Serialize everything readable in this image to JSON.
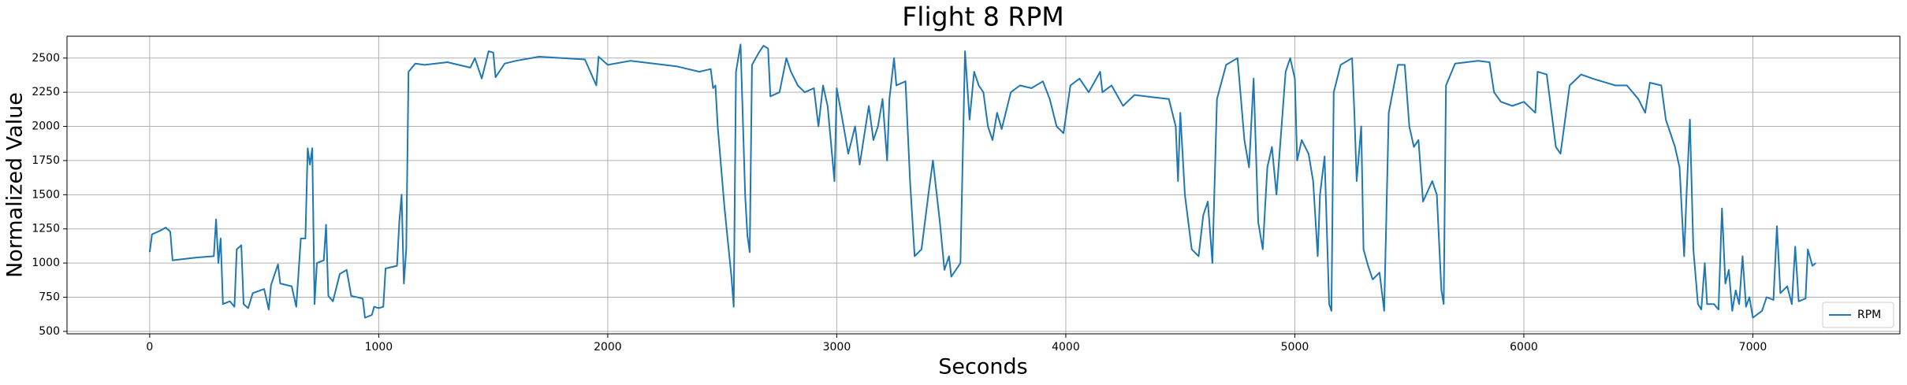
{
  "chart_data": {
    "type": "line",
    "title": "Flight 8 RPM",
    "x_label": "Seconds",
    "y_label": "Normalized Value",
    "xlim": [
      -361,
      7642
    ],
    "ylim": [
      482,
      2660
    ],
    "xticks": [
      0,
      1000,
      2000,
      3000,
      4000,
      5000,
      6000,
      7000
    ],
    "yticks": [
      500,
      750,
      1000,
      1250,
      1500,
      1750,
      2000,
      2250,
      2500
    ],
    "grid": true,
    "legend": "lower right",
    "series": [
      {
        "name": "RPM",
        "color": "#1f77b4",
        "x": [
          0,
          10,
          50,
          70,
          90,
          100,
          200,
          280,
          290,
          300,
          310,
          320,
          350,
          370,
          380,
          400,
          410,
          430,
          450,
          500,
          520,
          530,
          560,
          570,
          620,
          640,
          660,
          680,
          690,
          700,
          710,
          720,
          730,
          760,
          770,
          780,
          800,
          830,
          860,
          880,
          930,
          940,
          970,
          980,
          1000,
          1020,
          1030,
          1080,
          1090,
          1100,
          1110,
          1120,
          1130,
          1160,
          1200,
          1300,
          1400,
          1420,
          1450,
          1480,
          1500,
          1510,
          1550,
          1600,
          1700,
          1800,
          1900,
          1950,
          1960,
          2000,
          2100,
          2200,
          2300,
          2400,
          2450,
          2460,
          2470,
          2480,
          2510,
          2540,
          2550,
          2560,
          2580,
          2600,
          2610,
          2620,
          2630,
          2660,
          2680,
          2700,
          2710,
          2750,
          2780,
          2800,
          2830,
          2860,
          2900,
          2920,
          2940,
          2960,
          2990,
          3000,
          3030,
          3050,
          3080,
          3100,
          3140,
          3160,
          3180,
          3200,
          3220,
          3230,
          3250,
          3260,
          3300,
          3320,
          3340,
          3370,
          3400,
          3420,
          3450,
          3470,
          3490,
          3500,
          3520,
          3540,
          3560,
          3580,
          3600,
          3620,
          3640,
          3660,
          3680,
          3700,
          3720,
          3760,
          3800,
          3850,
          3900,
          3930,
          3960,
          3990,
          4020,
          4060,
          4100,
          4150,
          4160,
          4200,
          4250,
          4300,
          4400,
          4450,
          4480,
          4490,
          4500,
          4520,
          4550,
          4580,
          4600,
          4620,
          4640,
          4660,
          4700,
          4750,
          4780,
          4800,
          4820,
          4840,
          4860,
          4880,
          4900,
          4920,
          4960,
          4980,
          5000,
          5010,
          5030,
          5060,
          5080,
          5100,
          5110,
          5130,
          5150,
          5160,
          5170,
          5200,
          5250,
          5260,
          5270,
          5290,
          5300,
          5320,
          5340,
          5370,
          5390,
          5410,
          5450,
          5480,
          5500,
          5520,
          5540,
          5560,
          5600,
          5620,
          5640,
          5650,
          5660,
          5700,
          5800,
          5850,
          5870,
          5900,
          5950,
          6000,
          6050,
          6060,
          6100,
          6140,
          6160,
          6200,
          6250,
          6300,
          6400,
          6450,
          6500,
          6530,
          6550,
          6600,
          6620,
          6660,
          6680,
          6700,
          6710,
          6725,
          6740,
          6760,
          6775,
          6790,
          6800,
          6830,
          6850,
          6865,
          6880,
          6895,
          6910,
          6925,
          6940,
          6955,
          6970,
          6985,
          7000,
          7040,
          7060,
          7090,
          7105,
          7120,
          7150,
          7170,
          7185,
          7200,
          7230,
          7240,
          7260,
          7275
        ],
        "values": [
          1080,
          1210,
          1240,
          1260,
          1230,
          1020,
          1040,
          1050,
          1320,
          1000,
          1180,
          700,
          720,
          680,
          1100,
          1130,
          700,
          670,
          780,
          810,
          660,
          840,
          990,
          850,
          830,
          680,
          1180,
          1180,
          1840,
          1720,
          1840,
          700,
          1000,
          1020,
          1280,
          760,
          720,
          920,
          950,
          760,
          740,
          600,
          620,
          680,
          670,
          680,
          960,
          980,
          1300,
          1500,
          850,
          1100,
          2400,
          2460,
          2450,
          2470,
          2430,
          2500,
          2350,
          2550,
          2540,
          2360,
          2460,
          2480,
          2510,
          2500,
          2490,
          2300,
          2510,
          2450,
          2480,
          2460,
          2440,
          2400,
          2420,
          2280,
          2300,
          2000,
          1400,
          900,
          680,
          2400,
          2600,
          1500,
          1200,
          1080,
          2450,
          2540,
          2590,
          2570,
          2220,
          2250,
          2500,
          2400,
          2300,
          2250,
          2280,
          2000,
          2300,
          2150,
          1600,
          2280,
          2000,
          1800,
          2000,
          1720,
          2150,
          1900,
          2000,
          2200,
          1750,
          2200,
          2500,
          2300,
          2330,
          1600,
          1050,
          1100,
          1500,
          1750,
          1300,
          950,
          1050,
          900,
          950,
          1000,
          2550,
          2050,
          2400,
          2300,
          2250,
          2000,
          1900,
          2100,
          1980,
          2250,
          2300,
          2280,
          2330,
          2200,
          2000,
          1950,
          2300,
          2350,
          2250,
          2400,
          2250,
          2300,
          2150,
          2230,
          2210,
          2200,
          2000,
          1600,
          2100,
          1500,
          1100,
          1050,
          1350,
          1450,
          1000,
          2200,
          2450,
          2500,
          1900,
          1700,
          2350,
          1300,
          1100,
          1700,
          1850,
          1500,
          2400,
          2500,
          2350,
          1750,
          1900,
          1800,
          1600,
          1050,
          1500,
          1780,
          700,
          650,
          2250,
          2450,
          2500,
          2100,
          1600,
          2000,
          1100,
          980,
          880,
          930,
          650,
          2100,
          2450,
          2450,
          2000,
          1850,
          1900,
          1450,
          1600,
          1500,
          800,
          700,
          2300,
          2460,
          2480,
          2470,
          2250,
          2180,
          2150,
          2180,
          2100,
          2400,
          2380,
          1850,
          1800,
          2300,
          2380,
          2350,
          2300,
          2300,
          2200,
          2100,
          2320,
          2300,
          2050,
          1850,
          1700,
          1050,
          1480,
          2050,
          1100,
          700,
          660,
          1000,
          700,
          700,
          660,
          1400,
          850,
          950,
          650,
          800,
          700,
          1050,
          680,
          750,
          600,
          650,
          750,
          730,
          1270,
          780,
          830,
          700,
          1120,
          720,
          740,
          1100,
          980,
          1000
        ]
      }
    ]
  }
}
